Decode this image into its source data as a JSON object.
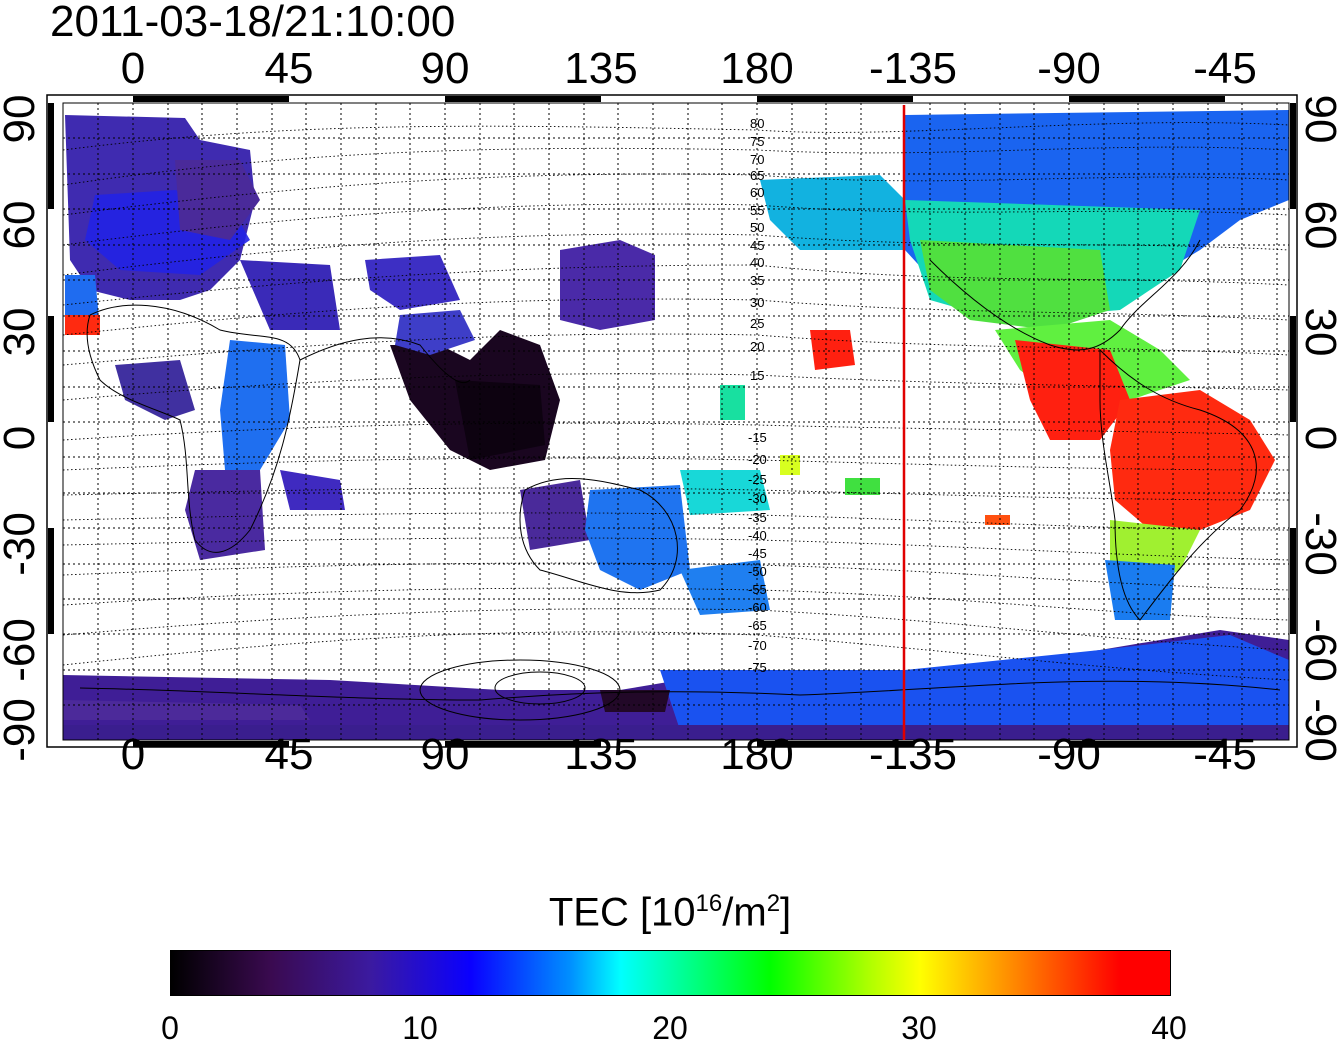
{
  "timestamp": "2011-03-18/21:10:00",
  "map": {
    "lon_ticks_top": [
      "0",
      "45",
      "90",
      "135",
      "180",
      "-135",
      "-90",
      "-45"
    ],
    "lon_ticks_bottom": [
      "0",
      "45",
      "90",
      "135",
      "180",
      "-135",
      "-90",
      "-45"
    ],
    "lat_ticks_left": [
      "90",
      "60",
      "30",
      "0",
      "-30",
      "-60",
      "-90"
    ],
    "lat_ticks_right": [
      "90",
      "60",
      "30",
      "0",
      "-30",
      "-60",
      "-90"
    ],
    "magnetic_lat_labels_north": [
      "80",
      "75",
      "70",
      "65",
      "60",
      "55",
      "50",
      "45",
      "40",
      "35",
      "30",
      "25",
      "20",
      "15"
    ],
    "magnetic_lat_labels_south": [
      "-15",
      "-20",
      "-25",
      "-30",
      "-35",
      "-40",
      "-45",
      "-50",
      "-55",
      "-60",
      "-65",
      "-70",
      "-75"
    ],
    "marker_longitude": -135,
    "marker_color": "#e00000"
  },
  "colorbar": {
    "title_prefix": "TEC  [10",
    "title_exp": "16",
    "title_mid": "/m",
    "title_exp2": "2",
    "title_suffix": "]",
    "ticks": [
      "0",
      "10",
      "20",
      "30",
      "40"
    ],
    "min": 0,
    "max": 40
  },
  "colors": {
    "low": "#000000",
    "mid_low": "#3b1aa0",
    "mid": "#00ffff",
    "mid_high": "#00ff00",
    "high": "#ff0000"
  }
}
